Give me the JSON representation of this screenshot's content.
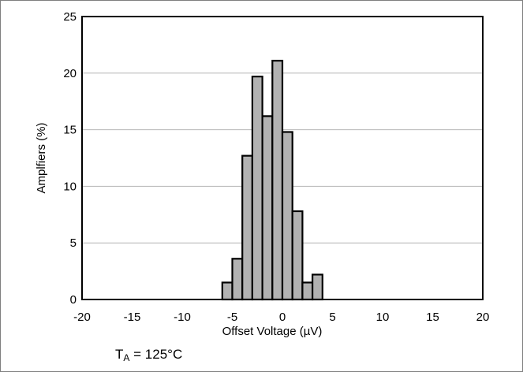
{
  "chart_data": {
    "type": "bar",
    "xlabel": "Offset Voltage (µV)",
    "ylabel": "Amplfiers (%)",
    "xlim": [
      -20,
      20
    ],
    "ylim": [
      0,
      25
    ],
    "xticks": [
      -20,
      -15,
      -10,
      -5,
      0,
      5,
      10,
      15,
      20
    ],
    "yticks": [
      0,
      5,
      10,
      15,
      20,
      25
    ],
    "grid": "horizontal",
    "bin_width": 1,
    "bins": [
      {
        "x": -6,
        "value": 1.5
      },
      {
        "x": -5,
        "value": 3.6
      },
      {
        "x": -4,
        "value": 12.7
      },
      {
        "x": -3,
        "value": 19.7
      },
      {
        "x": -2,
        "value": 16.2
      },
      {
        "x": -1,
        "value": 21.1
      },
      {
        "x": 0,
        "value": 14.8
      },
      {
        "x": 1,
        "value": 7.8
      },
      {
        "x": 2,
        "value": 1.5
      },
      {
        "x": 3,
        "value": 2.2
      }
    ]
  },
  "condition": {
    "prefix": "T",
    "subscript": "A",
    "suffix": " = 125°C"
  },
  "colors": {
    "bar_fill": "#b2b2b2",
    "bar_stroke": "#000000",
    "grid": "#b4b4b4",
    "frame": "#000000"
  }
}
